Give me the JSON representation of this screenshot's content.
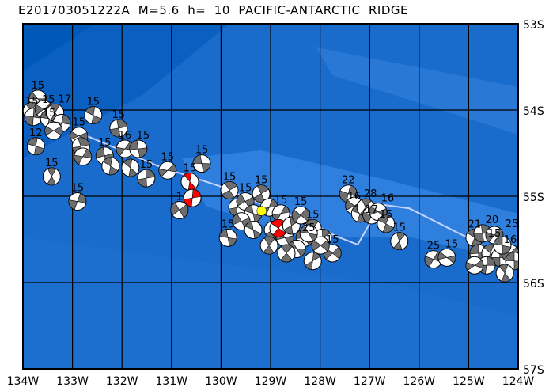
{
  "title": "E201703051222A  M=5.6  h=  10  PACIFIC-ANTARCTIC  RIDGE",
  "map": {
    "lon_range": [
      -134,
      -124
    ],
    "lat_range": [
      -57,
      -53
    ],
    "grid": true,
    "lon_labels": [
      "134W",
      "133W",
      "132W",
      "131W",
      "130W",
      "129W",
      "128W",
      "127W",
      "126W",
      "125W",
      "124W"
    ],
    "lat_labels": [
      "53S",
      "54S",
      "55S",
      "56S",
      "57S"
    ],
    "colors": {
      "ocean": "#1a6ccc",
      "deep": "#0a60c0",
      "ridge": "#2f80de",
      "plate_boundary": "#c8d4ff",
      "compression": "#6e6e6e",
      "highlight": "#ff0000",
      "epicenter": "#ffff00"
    }
  },
  "main_event": {
    "lon": -129.18,
    "lat": -55.17
  },
  "plate_boundary": [
    [
      -132.79,
      -54.28
    ],
    [
      -131.27,
      -54.65
    ],
    [
      -130.04,
      -54.88
    ],
    [
      -129.19,
      -55.09
    ],
    [
      -128.07,
      -55.34
    ],
    [
      -127.69,
      -55.46
    ],
    [
      -127.24,
      -55.56
    ],
    [
      -127.0,
      -55.32
    ],
    [
      -126.97,
      -55.08
    ],
    [
      -126.2,
      -55.14
    ],
    [
      -125.09,
      -55.46
    ],
    [
      -124.72,
      -55.48
    ]
  ],
  "events": [
    {
      "lon": -133.7,
      "lat": -53.87,
      "label": "15"
    },
    {
      "lon": -133.82,
      "lat": -54.01,
      "label": "15"
    },
    {
      "lon": -133.79,
      "lat": -54.08,
      "label": ""
    },
    {
      "lon": -133.58,
      "lat": -53.99,
      "label": "15"
    },
    {
      "lon": -133.47,
      "lat": -54.1,
      "label": "15"
    },
    {
      "lon": -133.35,
      "lat": -54.03,
      "label": "17"
    },
    {
      "lon": -133.22,
      "lat": -54.15,
      "label": ""
    },
    {
      "lon": -133.38,
      "lat": -54.24,
      "label": ""
    },
    {
      "lon": -133.74,
      "lat": -54.42,
      "label": "12"
    },
    {
      "lon": -133.42,
      "lat": -54.77,
      "label": "15"
    },
    {
      "lon": -132.9,
      "lat": -55.06,
      "label": "15"
    },
    {
      "lon": -132.87,
      "lat": -54.3,
      "label": "15"
    },
    {
      "lon": -132.58,
      "lat": -54.06,
      "label": "15"
    },
    {
      "lon": -132.83,
      "lat": -54.42,
      "label": ""
    },
    {
      "lon": -132.79,
      "lat": -54.54,
      "label": ""
    },
    {
      "lon": -132.35,
      "lat": -54.53,
      "label": "15"
    },
    {
      "lon": -132.23,
      "lat": -54.65,
      "label": ""
    },
    {
      "lon": -132.07,
      "lat": -54.21,
      "label": "15"
    },
    {
      "lon": -131.94,
      "lat": -54.45,
      "label": "16"
    },
    {
      "lon": -131.67,
      "lat": -54.45,
      "label": "15"
    },
    {
      "lon": -131.83,
      "lat": -54.67,
      "label": ""
    },
    {
      "lon": -131.51,
      "lat": -54.79,
      "label": "15"
    },
    {
      "lon": -131.08,
      "lat": -54.7,
      "label": "15"
    },
    {
      "lon": -130.39,
      "lat": -54.62,
      "label": "15"
    },
    {
      "lon": -130.63,
      "lat": -54.83,
      "label": "15",
      "highlight": true
    },
    {
      "lon": -130.58,
      "lat": -55.02,
      "label": "",
      "highlight": true
    },
    {
      "lon": -130.84,
      "lat": -55.16,
      "label": "1"
    },
    {
      "lon": -129.86,
      "lat": -55.48,
      "label": "15"
    },
    {
      "lon": -129.83,
      "lat": -54.93,
      "label": "15"
    },
    {
      "lon": -129.67,
      "lat": -55.13,
      "label": ""
    },
    {
      "lon": -129.51,
      "lat": -55.06,
      "label": "15"
    },
    {
      "lon": -129.35,
      "lat": -55.2,
      "label": ""
    },
    {
      "lon": -129.19,
      "lat": -54.97,
      "label": "15"
    },
    {
      "lon": -129.03,
      "lat": -55.13,
      "label": ""
    },
    {
      "lon": -129.59,
      "lat": -55.29,
      "label": ""
    },
    {
      "lon": -129.35,
      "lat": -55.39,
      "label": ""
    },
    {
      "lon": -128.95,
      "lat": -55.39,
      "label": ""
    },
    {
      "lon": -128.79,
      "lat": -55.2,
      "label": "15"
    },
    {
      "lon": -128.71,
      "lat": -55.48,
      "label": ""
    },
    {
      "lon": -128.84,
      "lat": -55.37,
      "label": "",
      "highlight": true
    },
    {
      "lon": -128.58,
      "lat": -55.34,
      "label": ""
    },
    {
      "lon": -128.39,
      "lat": -55.22,
      "label": "15"
    },
    {
      "lon": -128.31,
      "lat": -55.48,
      "label": ""
    },
    {
      "lon": -128.15,
      "lat": -55.37,
      "label": "15"
    },
    {
      "lon": -127.95,
      "lat": -55.48,
      "label": ""
    },
    {
      "lon": -127.75,
      "lat": -55.66,
      "label": "15"
    },
    {
      "lon": -128.47,
      "lat": -55.61,
      "label": ""
    },
    {
      "lon": -128.68,
      "lat": -55.66,
      "label": ""
    },
    {
      "lon": -128.15,
      "lat": -55.75,
      "label": ""
    },
    {
      "lon": -127.99,
      "lat": -55.57,
      "label": ""
    },
    {
      "lon": -128.23,
      "lat": -55.43,
      "label": "25"
    },
    {
      "lon": -129.03,
      "lat": -55.57,
      "label": ""
    },
    {
      "lon": -127.43,
      "lat": -54.97,
      "label": "22"
    },
    {
      "lon": -127.31,
      "lat": -55.11,
      "label": "16"
    },
    {
      "lon": -127.19,
      "lat": -55.2,
      "label": ""
    },
    {
      "lon": -127.08,
      "lat": -55.13,
      "label": "28"
    },
    {
      "lon": -126.96,
      "lat": -55.22,
      "label": "17"
    },
    {
      "lon": -126.83,
      "lat": -55.18,
      "label": "16"
    },
    {
      "lon": -126.67,
      "lat": -55.32,
      "label": "15"
    },
    {
      "lon": -126.4,
      "lat": -55.52,
      "label": "15"
    },
    {
      "lon": -125.71,
      "lat": -55.73,
      "label": "25"
    },
    {
      "lon": -125.44,
      "lat": -55.71,
      "label": "15"
    },
    {
      "lon": -124.88,
      "lat": -55.48,
      "label": "21"
    },
    {
      "lon": -124.72,
      "lat": -55.43,
      "label": "20"
    },
    {
      "lon": -124.48,
      "lat": -55.45,
      "label": "15"
    },
    {
      "lon": -124.8,
      "lat": -55.66,
      "label": ""
    },
    {
      "lon": -124.56,
      "lat": -55.66,
      "label": ""
    },
    {
      "lon": -124.37,
      "lat": -55.71,
      "label": ""
    },
    {
      "lon": -124.16,
      "lat": -55.66,
      "label": "16"
    },
    {
      "lon": -124.08,
      "lat": -55.75,
      "label": ""
    },
    {
      "lon": -124.27,
      "lat": -55.89,
      "label": ""
    },
    {
      "lon": -124.64,
      "lat": -55.8,
      "label": ""
    },
    {
      "lon": -124.88,
      "lat": -55.8,
      "label": ""
    },
    {
      "lon": -124.32,
      "lat": -55.57,
      "label": "25"
    }
  ]
}
